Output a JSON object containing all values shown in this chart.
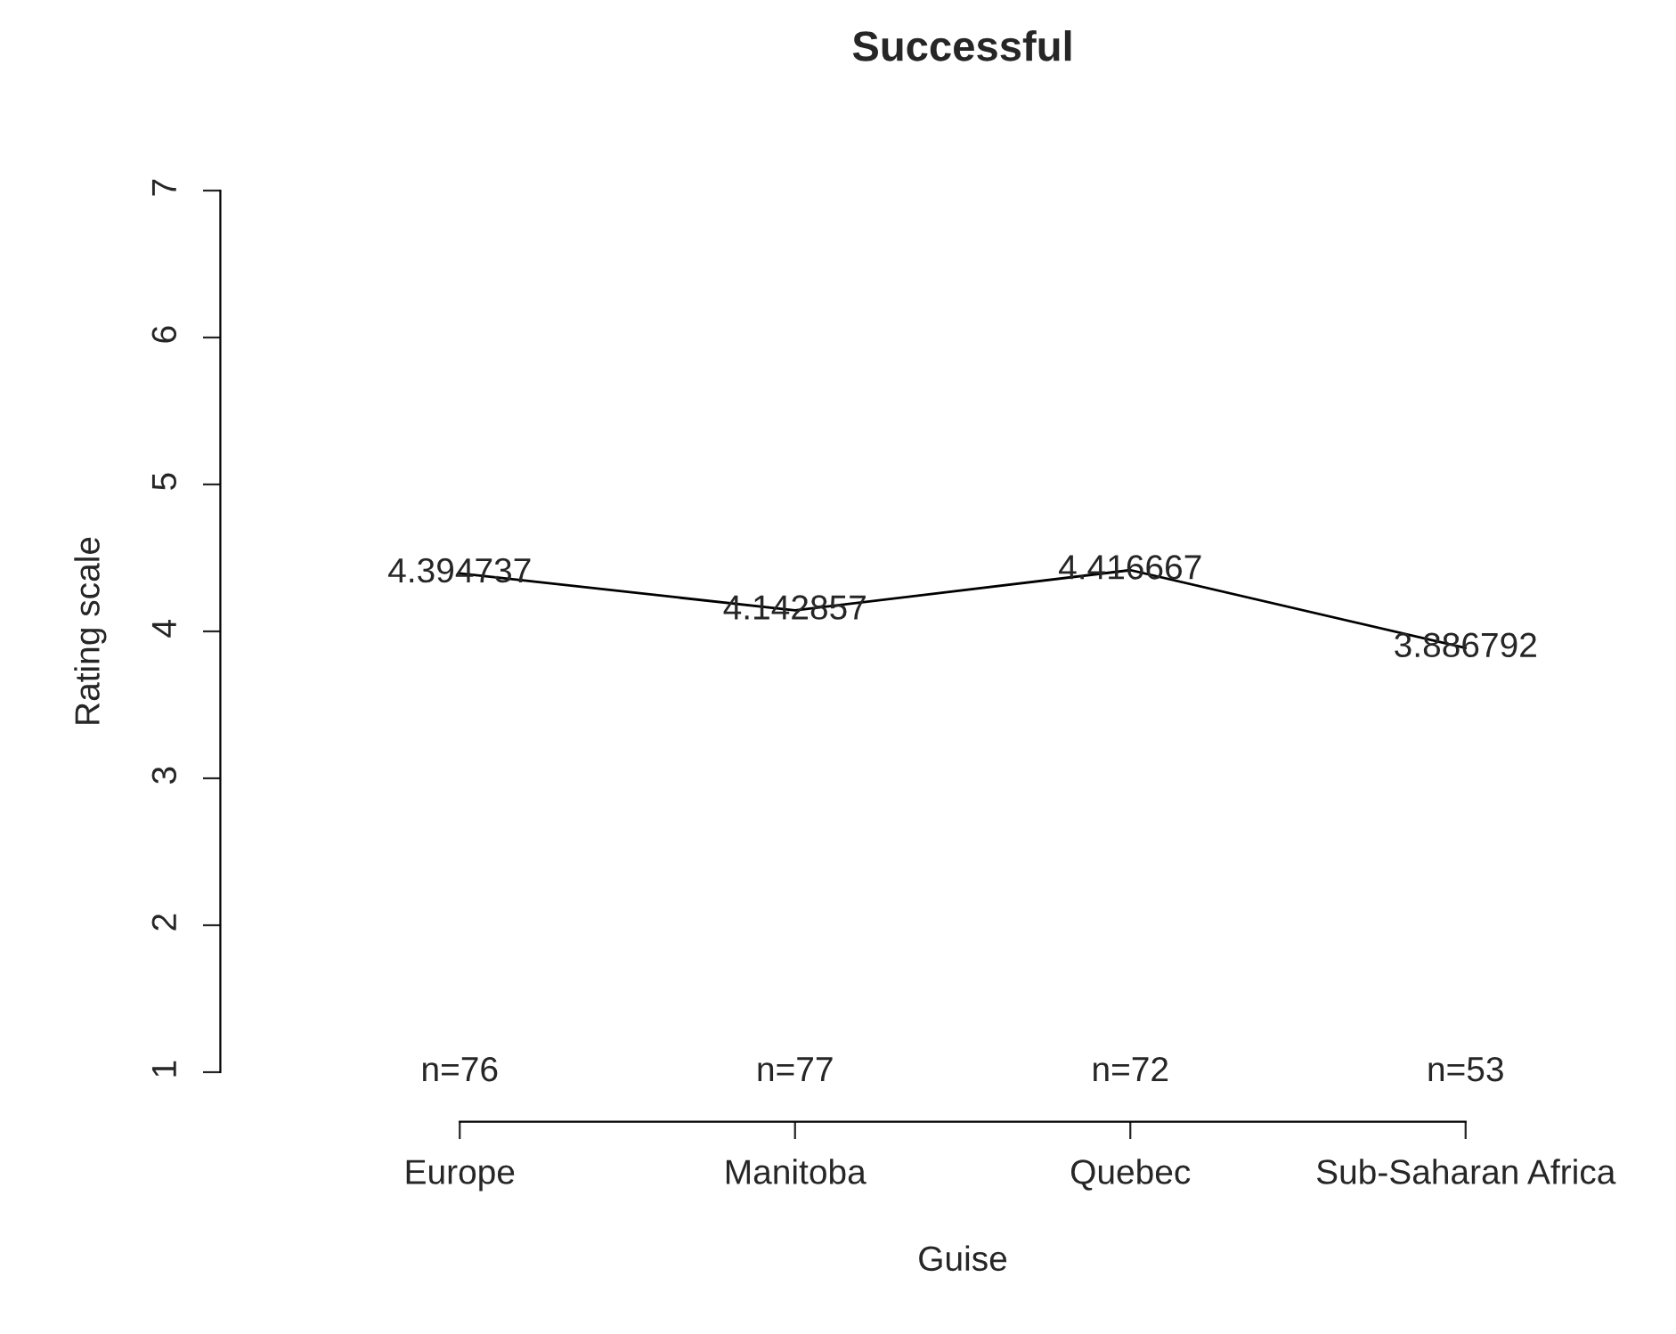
{
  "chart_data": {
    "type": "line",
    "title": "Successful",
    "xlabel": "Guise",
    "ylabel": "Rating scale",
    "categories": [
      "Europe",
      "Manitoba",
      "Quebec",
      "Sub-Saharan Africa"
    ],
    "series": [
      {
        "color": "#000000",
        "values": [
          4.394737,
          4.142857,
          4.416667,
          3.886792
        ]
      }
    ],
    "data_labels": true,
    "ylim": [
      1,
      7
    ],
    "yticks": [
      1,
      2,
      3,
      4,
      5,
      6,
      7
    ],
    "grid": false,
    "legend": false,
    "marker": "none",
    "line_style": "solid",
    "annotations": [
      "n=76",
      "n=77",
      "n=72",
      "n=53"
    ]
  }
}
